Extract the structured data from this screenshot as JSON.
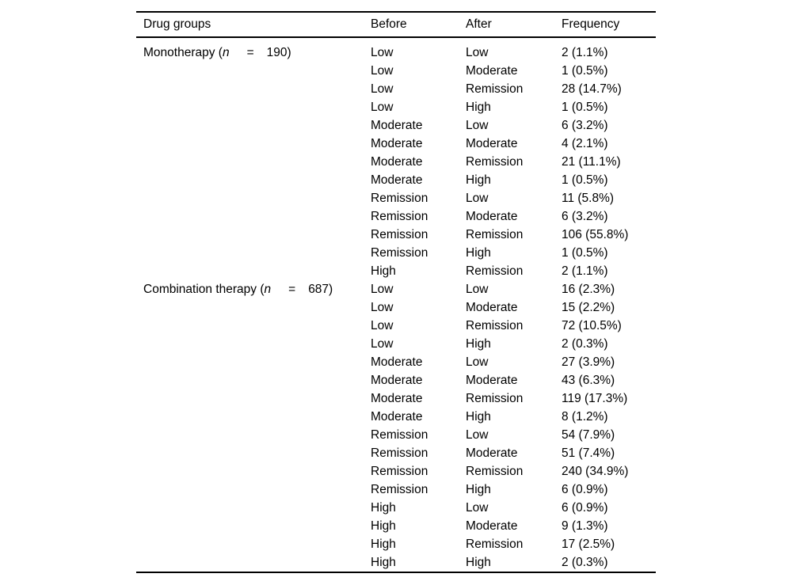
{
  "page": {
    "background": "#ffffff",
    "text_color": "#000000",
    "rule_color": "#000000"
  },
  "table": {
    "columns": [
      "Drug groups",
      "Before",
      "After",
      "Frequency"
    ],
    "groups": [
      {
        "label": {
          "prefix": "Monotherapy (",
          "var": "n",
          "eq": "=",
          "value": "190)"
        },
        "rows": [
          {
            "before": "Low",
            "after": "Low",
            "frequency": "2 (1.1%)"
          },
          {
            "before": "Low",
            "after": "Moderate",
            "frequency": "1 (0.5%)"
          },
          {
            "before": "Low",
            "after": "Remission",
            "frequency": "28 (14.7%)"
          },
          {
            "before": "Low",
            "after": "High",
            "frequency": "1 (0.5%)"
          },
          {
            "before": "Moderate",
            "after": "Low",
            "frequency": "6 (3.2%)"
          },
          {
            "before": "Moderate",
            "after": "Moderate",
            "frequency": "4 (2.1%)"
          },
          {
            "before": "Moderate",
            "after": "Remission",
            "frequency": "21 (11.1%)"
          },
          {
            "before": "Moderate",
            "after": "High",
            "frequency": "1 (0.5%)"
          },
          {
            "before": "Remission",
            "after": "Low",
            "frequency": "11 (5.8%)"
          },
          {
            "before": "Remission",
            "after": "Moderate",
            "frequency": "6 (3.2%)"
          },
          {
            "before": "Remission",
            "after": "Remission",
            "frequency": "106 (55.8%)"
          },
          {
            "before": "Remission",
            "after": "High",
            "frequency": "1 (0.5%)"
          },
          {
            "before": "High",
            "after": "Remission",
            "frequency": "2 (1.1%)"
          }
        ]
      },
      {
        "label": {
          "prefix": "Combination therapy (",
          "var": "n",
          "eq": "=",
          "value": "687)"
        },
        "rows": [
          {
            "before": "Low",
            "after": "Low",
            "frequency": "16 (2.3%)"
          },
          {
            "before": "Low",
            "after": "Moderate",
            "frequency": "15 (2.2%)"
          },
          {
            "before": "Low",
            "after": "Remission",
            "frequency": "72 (10.5%)"
          },
          {
            "before": "Low",
            "after": "High",
            "frequency": "2 (0.3%)"
          },
          {
            "before": "Moderate",
            "after": "Low",
            "frequency": "27 (3.9%)"
          },
          {
            "before": "Moderate",
            "after": "Moderate",
            "frequency": "43 (6.3%)"
          },
          {
            "before": "Moderate",
            "after": "Remission",
            "frequency": "119 (17.3%)"
          },
          {
            "before": "Moderate",
            "after": "High",
            "frequency": "8 (1.2%)"
          },
          {
            "before": "Remission",
            "after": "Low",
            "frequency": "54 (7.9%)"
          },
          {
            "before": "Remission",
            "after": "Moderate",
            "frequency": "51 (7.4%)"
          },
          {
            "before": "Remission",
            "after": "Remission",
            "frequency": "240 (34.9%)"
          },
          {
            "before": "Remission",
            "after": "High",
            "frequency": "6 (0.9%)"
          },
          {
            "before": "High",
            "after": "Low",
            "frequency": "6 (0.9%)"
          },
          {
            "before": "High",
            "after": "Moderate",
            "frequency": "9 (1.3%)"
          },
          {
            "before": "High",
            "after": "Remission",
            "frequency": "17 (2.5%)"
          },
          {
            "before": "High",
            "after": "High",
            "frequency": "2 (0.3%)"
          }
        ]
      }
    ]
  }
}
